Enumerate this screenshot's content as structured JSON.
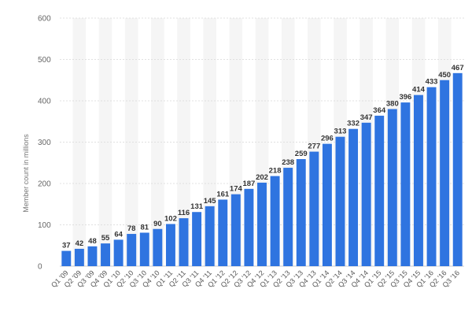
{
  "chart_data": {
    "type": "bar",
    "title": "",
    "xlabel": "",
    "ylabel": "Member count in millions",
    "ylim": [
      0,
      600
    ],
    "yticks": [
      0,
      100,
      200,
      300,
      400,
      500,
      600
    ],
    "grid": true,
    "legend": "none",
    "bar_color": "#2f74e0",
    "stripe_color": "#f5f5f5",
    "categories": [
      "Q1 '09",
      "Q2 '09",
      "Q3 '09",
      "Q4 '09",
      "Q1 '10",
      "Q2 '10",
      "Q3 '10",
      "Q4 '10",
      "Q1 '11",
      "Q2 '11",
      "Q3 '11",
      "Q4 '11",
      "Q1 '12",
      "Q2 '12",
      "Q3 '12",
      "Q4 '12",
      "Q1 '13",
      "Q2 '13",
      "Q3 '13",
      "Q4 '13",
      "Q1 '14",
      "Q2 '14",
      "Q3 '14",
      "Q4 '14",
      "Q1 '15",
      "Q2 '15",
      "Q3 '15",
      "Q4 '15",
      "Q1 '16",
      "Q2 '16",
      "Q3 '16"
    ],
    "values": [
      37,
      42,
      48,
      55,
      64,
      78,
      81,
      90,
      102,
      116,
      131,
      145,
      161,
      174,
      187,
      202,
      218,
      238,
      259,
      277,
      296,
      313,
      332,
      347,
      364,
      380,
      396,
      414,
      433,
      450,
      467
    ],
    "value_labels": [
      "37",
      "42",
      "48",
      "55",
      "64",
      "78",
      "81",
      "90",
      "102",
      "116",
      "131",
      "145",
      "161",
      "174",
      "187",
      "202",
      "218",
      "238",
      "259",
      "277",
      "296",
      "313",
      "332",
      "347",
      "364",
      "380",
      "396",
      "414",
      "433",
      "450",
      "467"
    ]
  }
}
